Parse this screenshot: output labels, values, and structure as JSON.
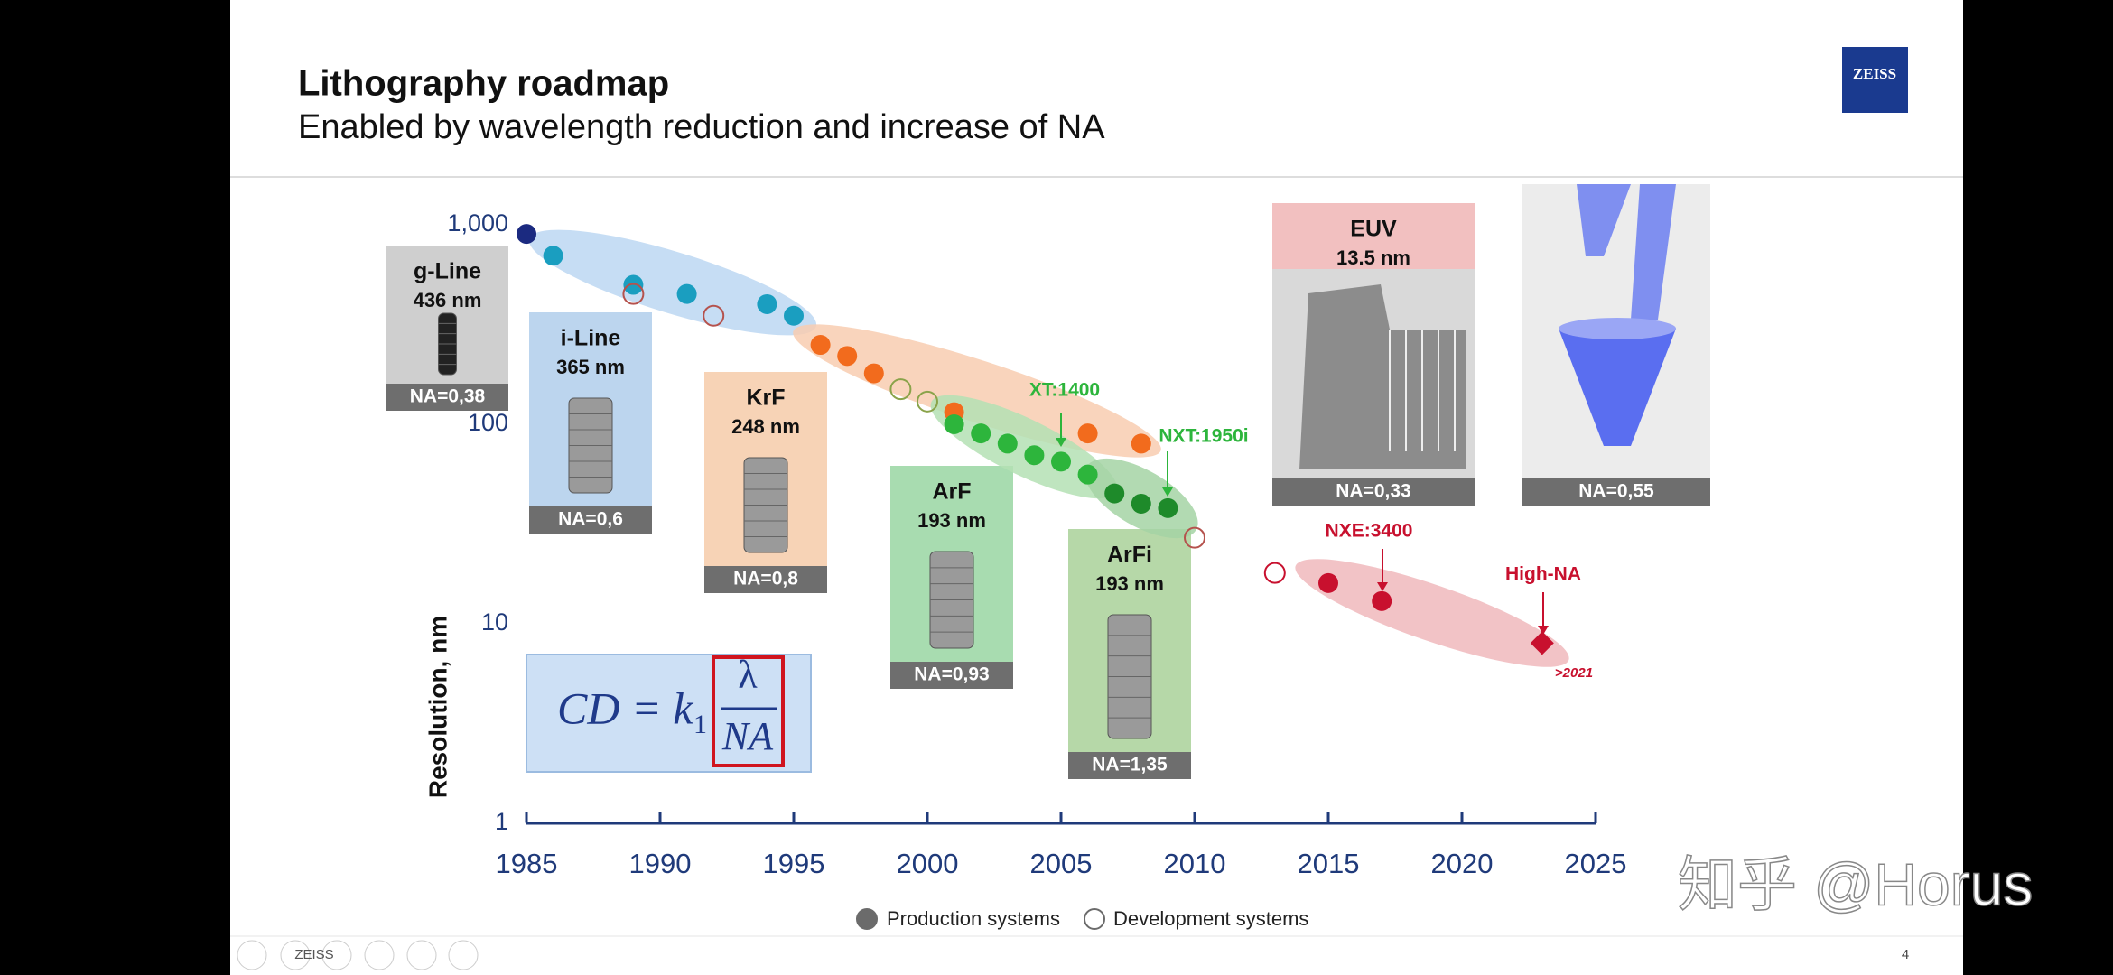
{
  "header": {
    "title": "Lithography roadmap",
    "subtitle": "Enabled by wavelength reduction and increase of NA",
    "logo": "ZEISS"
  },
  "chart_data": {
    "type": "scatter",
    "y_label": "Resolution, nm",
    "log_scale": true,
    "grid": false,
    "xlim": [
      1985,
      2025
    ],
    "xticks": [
      1985,
      1990,
      1995,
      2000,
      2005,
      2010,
      2015,
      2020,
      2025
    ],
    "ylim": [
      1,
      1000
    ],
    "yticks": [
      1,
      10,
      100,
      {
        "value": 1000,
        "label": "1,000"
      }
    ],
    "series": [
      {
        "name": "Production systems",
        "color": "#6b6b6b",
        "filled": true,
        "x": [
          1985,
          1986,
          1989,
          1991,
          1994,
          1995,
          1996,
          1997,
          1998,
          2001,
          2006,
          2008,
          2001,
          2002,
          2003,
          2004,
          2005,
          2006,
          2007,
          2008,
          2009,
          2015,
          2017,
          2023
        ],
        "values": [
          900,
          700,
          500,
          450,
          400,
          350,
          250,
          220,
          180,
          115,
          90,
          80,
          100,
          90,
          80,
          70,
          65,
          56,
          45,
          40,
          38,
          16,
          13,
          8
        ],
        "colors": [
          "#1b2a80",
          "#1a9ec0",
          "#1a9ec0",
          "#1a9ec0",
          "#1a9ec0",
          "#1a9ec0",
          "#f26b1d",
          "#f26b1d",
          "#f26b1d",
          "#f26b1d",
          "#f26b1d",
          "#f26b1d",
          "#2db53c",
          "#2db53c",
          "#2db53c",
          "#2db53c",
          "#2db53c",
          "#2db53c",
          "#1e8a2a",
          "#1e8a2a",
          "#1e8a2a",
          "#c8102e",
          "#c8102e",
          "#c8102e"
        ],
        "markers": [
          "circle",
          "circle",
          "circle",
          "circle",
          "circle",
          "circle",
          "circle",
          "circle",
          "circle",
          "circle",
          "circle",
          "circle",
          "circle",
          "circle",
          "circle",
          "circle",
          "circle",
          "circle",
          "circle",
          "circle",
          "circle",
          "circle",
          "circle",
          "diamond"
        ]
      },
      {
        "name": "Development systems",
        "color": "#6b6b6b",
        "filled": false,
        "x": [
          1989,
          1992,
          1999,
          2000,
          2010,
          2013
        ],
        "values": [
          450,
          350,
          150,
          130,
          27,
          18
        ],
        "colors": [
          "#b5524d",
          "#b5524d",
          "#8aa34a",
          "#8aa34a",
          "#b5524d",
          "#c8102e"
        ]
      }
    ],
    "annotations": [
      {
        "text": "XT:1400",
        "color": "#2db53c"
      },
      {
        "text": "NXT:1950i",
        "color": "#2db53c"
      },
      {
        "text": "NXE:3400",
        "color": "#c8102e"
      },
      {
        "text": "High-NA",
        "color": "#c8102e"
      },
      {
        "text": ">2021",
        "color": "#c8102e"
      }
    ]
  },
  "sources": [
    {
      "name": "g-Line",
      "wavelength": "436 nm",
      "na": "NA=0,38"
    },
    {
      "name": "i-Line",
      "wavelength": "365 nm",
      "na": "NA=0,6"
    },
    {
      "name": "KrF",
      "wavelength": "248 nm",
      "na": "NA=0,8"
    },
    {
      "name": "ArF",
      "wavelength": "193 nm",
      "na": "NA=0,93"
    },
    {
      "name": "ArFi",
      "wavelength": "193 nm",
      "na": "NA=1,35"
    },
    {
      "name": "EUV",
      "wavelength": "13.5 nm",
      "na": "NA=0,33"
    },
    {
      "na": "NA=0,55"
    }
  ],
  "formula": {
    "lhs": "CD = k",
    "sub": "1",
    "num": "λ",
    "den": "NA"
  },
  "watermark": "知乎 @Horus",
  "footer": {
    "nav_label": "ZEISS",
    "page": "4"
  }
}
